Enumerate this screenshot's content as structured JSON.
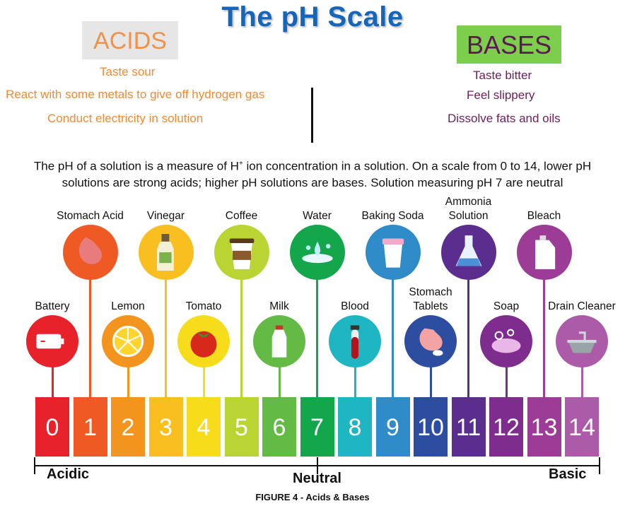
{
  "title": "The pH Scale",
  "acids": {
    "heading": "ACIDS",
    "properties": [
      "Taste sour",
      "React with some metals to give off hydrogen gas",
      "Conduct electricity in solution"
    ]
  },
  "bases": {
    "heading": "BASES",
    "properties": [
      "Taste bitter",
      "Feel slippery",
      "Dissolve fats and oils"
    ]
  },
  "description": {
    "part1": "The pH of a solution is a measure of H",
    "sup": "+",
    "part2": " ion concentration in a solution. On a scale from 0 to 14, lower pH",
    "line2": "solutions are strong acids; higher pH solutions are bases. Solution measuring pH 7 are neutral"
  },
  "examples": [
    {
      "ph": 0,
      "label": "Battery",
      "icon": "battery-icon"
    },
    {
      "ph": 1,
      "label": "Stomach Acid",
      "icon": "stomach-icon"
    },
    {
      "ph": 2,
      "label": "Lemon",
      "icon": "lemon-icon"
    },
    {
      "ph": 3,
      "label": "Vinegar",
      "icon": "vinegar-bottle-icon"
    },
    {
      "ph": 4,
      "label": "Tomato",
      "icon": "tomato-icon"
    },
    {
      "ph": 5,
      "label": "Coffee",
      "icon": "coffee-cup-icon"
    },
    {
      "ph": 6,
      "label": "Milk",
      "icon": "milk-bottle-icon"
    },
    {
      "ph": 7,
      "label": "Water",
      "icon": "water-splash-icon"
    },
    {
      "ph": 8,
      "label": "Blood",
      "icon": "blood-tube-icon"
    },
    {
      "ph": 9,
      "label": "Baking Soda",
      "icon": "baking-soda-icon"
    },
    {
      "ph": 10,
      "label": "Stomach\nTablets",
      "icon": "stomach-tablet-icon"
    },
    {
      "ph": 11,
      "label": "Ammonia\nSolution",
      "icon": "flask-icon"
    },
    {
      "ph": 12,
      "label": "Soap",
      "icon": "soap-icon"
    },
    {
      "ph": 13,
      "label": "Bleach",
      "icon": "bleach-jug-icon"
    },
    {
      "ph": 14,
      "label": "Drain Cleaner",
      "icon": "sink-icon"
    }
  ],
  "scale": {
    "numbers": [
      "0",
      "1",
      "2",
      "3",
      "4",
      "5",
      "6",
      "7",
      "8",
      "9",
      "10",
      "11",
      "12",
      "13",
      "14"
    ],
    "colors": [
      "#e8222a",
      "#ef5a24",
      "#f3941e",
      "#f9bf21",
      "#f7dc1c",
      "#b9d433",
      "#63bb46",
      "#14a64b",
      "#1fb6c4",
      "#2f8cc9",
      "#2d4da0",
      "#5a2d8f",
      "#7f2c8f",
      "#9c3c97",
      "#ac5ba8"
    ],
    "left_label": "Acidic",
    "center_label": "Neutral",
    "right_label": "Basic"
  },
  "caption": "FIGURE 4 -  Acids & Bases",
  "colors": {
    "title": "#1565b8",
    "acid_text": "#f08a34",
    "base_text": "#6a1f5a",
    "bases_box": "#7dce4c",
    "acids_box": "#e6e6e6"
  }
}
